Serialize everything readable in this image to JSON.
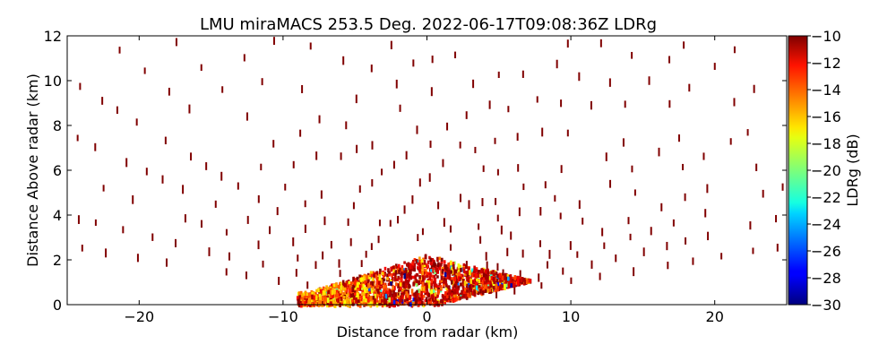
{
  "chart_data": {
    "type": "heatmap",
    "title": "LMU miraMACS 253.5 Deg. 2022-06-17T09:08:36Z  LDRg",
    "xlabel": "Distance from radar (km)",
    "ylabel": "Distance Above radar  (km)",
    "xlim": [
      -25,
      25
    ],
    "ylim": [
      0,
      12
    ],
    "xticks": [
      -20,
      -10,
      0,
      10,
      20
    ],
    "yticks": [
      0,
      2,
      4,
      6,
      8,
      10,
      12
    ],
    "colorbar": {
      "label": "LDRg (dB)",
      "range": [
        -30,
        -10
      ],
      "ticks": [
        -10,
        -12,
        -14,
        -16,
        -18,
        -20,
        -22,
        -24,
        -26,
        -28,
        -30
      ],
      "colormap": "jet"
    },
    "scan": "RHI",
    "sparse_returns": {
      "description_value_dB": -10,
      "ray_elevations_deg": [
        6,
        9,
        12,
        15,
        19,
        23,
        28,
        33,
        38,
        44,
        50,
        57,
        64,
        72,
        80,
        88,
        95,
        102,
        110,
        118,
        125,
        132,
        139,
        146,
        152,
        158,
        163,
        167,
        171,
        174
      ],
      "gate_spacing_km": 1.6,
      "max_range_km": 26
    },
    "dense_echo": {
      "x_range_km": [
        -9,
        9.5
      ],
      "max_height_km": 2.2,
      "lower_right_edge_slope": 0.16,
      "value_range_dB": [
        -22,
        -10
      ],
      "dominant_value_dB": -11
    }
  }
}
